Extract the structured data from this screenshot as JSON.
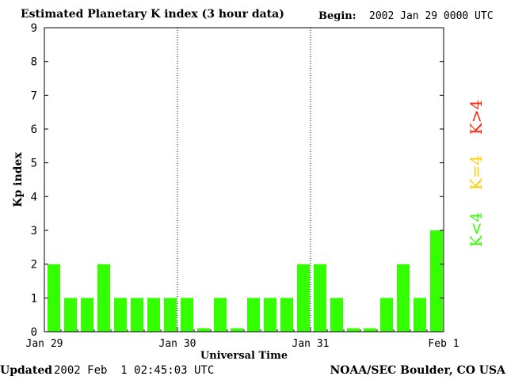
{
  "header": {
    "title": "Estimated Planetary K index (3 hour data)",
    "begin_label": "Begin:",
    "begin_value": "2002 Jan 29 0000 UTC"
  },
  "footer": {
    "updated_label": "Updated",
    "updated_value": "2002 Feb  1 02:45:03 UTC",
    "credit": "NOAA/SEC Boulder, CO USA"
  },
  "legend": [
    {
      "label": "K<4",
      "color": "#33ff00"
    },
    {
      "label": "K=4",
      "color": "#ffcc00"
    },
    {
      "label": "K>4",
      "color": "#ff2200"
    }
  ],
  "chart_data": {
    "type": "bar",
    "title": "Estimated Planetary K index (3 hour data)",
    "xlabel": "Universal Time",
    "ylabel": "Kp index",
    "ylim": [
      0,
      9
    ],
    "yticks": [
      0,
      1,
      2,
      3,
      4,
      5,
      6,
      7,
      8,
      9
    ],
    "day_labels": [
      "Jan 29",
      "Jan 30",
      "Jan 31",
      "Feb 1"
    ],
    "bars_per_day": 8,
    "values": [
      2,
      1,
      1,
      2,
      1,
      1,
      1,
      1,
      1,
      0.1,
      1,
      0.1,
      1,
      1,
      1,
      2,
      2,
      1,
      0.1,
      0.1,
      1,
      2,
      1,
      3
    ],
    "bar_color": "#33ff00",
    "grid": "dotted vertical lines at day boundaries"
  }
}
